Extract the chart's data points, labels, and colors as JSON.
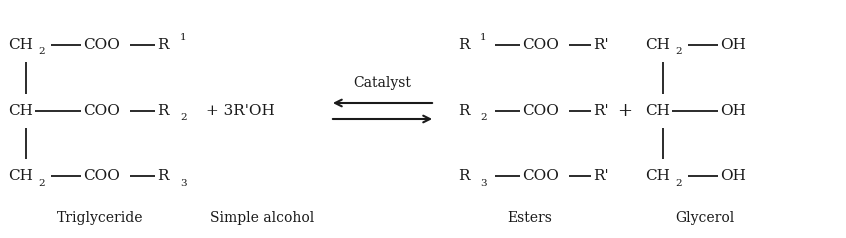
{
  "bg_color": "#ffffff",
  "text_color": "#1a1a1a",
  "fig_width": 8.46,
  "fig_height": 2.38,
  "dpi": 100,
  "catalyst_label": "Catalyst",
  "labels": {
    "triglyceride": "Triglyceride",
    "simple_alcohol": "Simple alcohol",
    "esters": "Esters",
    "glycerol": "Glycerol"
  },
  "font_size": 11,
  "label_font_size": 10,
  "sub_font_size": 7.5
}
